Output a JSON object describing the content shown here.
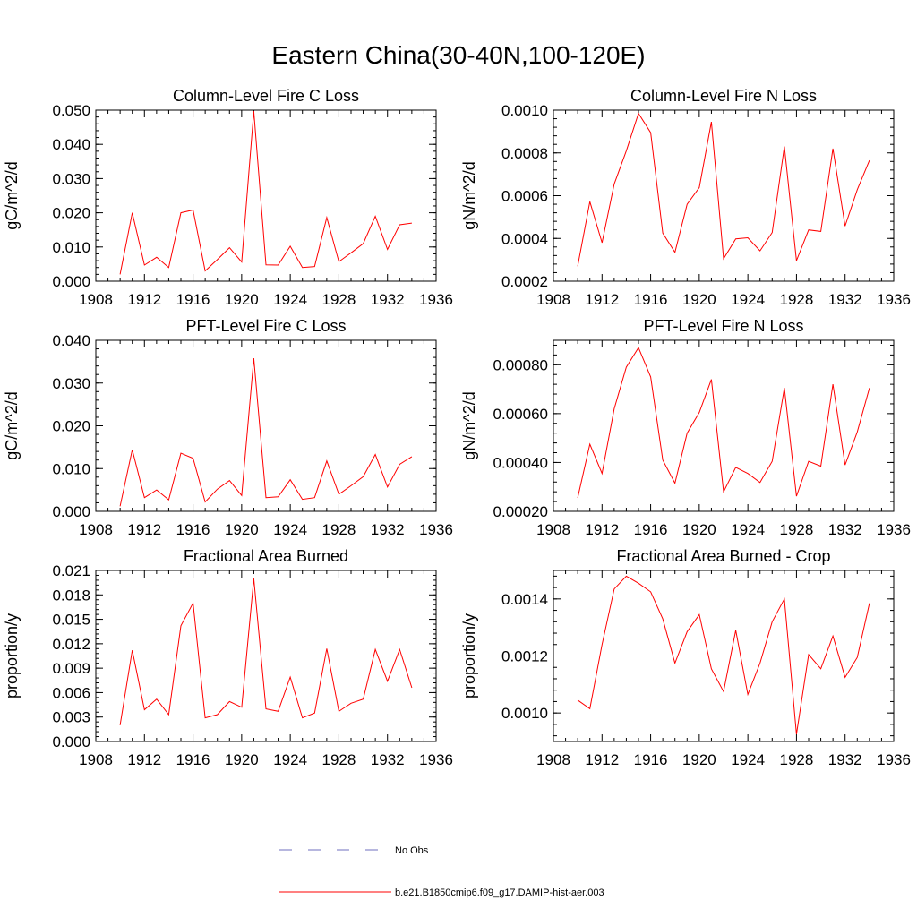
{
  "title": "Eastern China(30-40N,100-120E)",
  "legend": {
    "items": [
      {
        "label": "No Obs",
        "color": "#6f6fbf",
        "style": "dashed"
      },
      {
        "label": "b.e21.B1850cmip6.f09_g17.DAMIP-hist-aer.003",
        "color": "#ff0000",
        "style": "solid"
      }
    ]
  },
  "chart_data": [
    {
      "type": "line",
      "title": "Column-Level Fire C Loss",
      "ylabel": "gC/m^2/d",
      "xlim": [
        1908,
        1936
      ],
      "ylim": [
        0,
        0.05
      ],
      "xticks": [
        1908,
        1912,
        1916,
        1920,
        1924,
        1928,
        1932,
        1936
      ],
      "xtick_labels": [
        "1908",
        "1912",
        "1916",
        "1920",
        "1924",
        "1928",
        "1932",
        "1936"
      ],
      "yticks": [
        0,
        0.01,
        0.02,
        0.03,
        0.04,
        0.05
      ],
      "ytick_labels": [
        "0.000",
        "0.010",
        "0.020",
        "0.030",
        "0.040",
        "0.050"
      ],
      "series": [
        {
          "name": "b.e21.B1850cmip6.f09_g17.DAMIP-hist-aer.003",
          "color": "#ff0000",
          "x": [
            1910,
            1911,
            1912,
            1913,
            1914,
            1915,
            1916,
            1917,
            1918,
            1919,
            1920,
            1921,
            1922,
            1923,
            1924,
            1925,
            1926,
            1927,
            1928,
            1929,
            1930,
            1931,
            1932,
            1933,
            1934
          ],
          "y": [
            0.002,
            0.02,
            0.0047,
            0.007,
            0.004,
            0.02,
            0.0208,
            0.003,
            0.0063,
            0.0098,
            0.0056,
            0.0497,
            0.0048,
            0.0047,
            0.0102,
            0.004,
            0.0043,
            0.0186,
            0.0057,
            0.0083,
            0.011,
            0.019,
            0.0093,
            0.0165,
            0.017
          ]
        }
      ]
    },
    {
      "type": "line",
      "title": "Column-Level Fire N Loss",
      "ylabel": "gN/m^2/d",
      "xlim": [
        1908,
        1936
      ],
      "ylim": [
        0.0002,
        0.001
      ],
      "xticks": [
        1908,
        1912,
        1916,
        1920,
        1924,
        1928,
        1932,
        1936
      ],
      "xtick_labels": [
        "1908",
        "1912",
        "1916",
        "1920",
        "1924",
        "1928",
        "1932",
        "1936"
      ],
      "yticks": [
        0.0002,
        0.0004,
        0.0006,
        0.0008,
        0.001
      ],
      "ytick_labels": [
        "0.0002",
        "0.0004",
        "0.0006",
        "0.0008",
        "0.0010"
      ],
      "series": [
        {
          "name": "b.e21.B1850cmip6.f09_g17.DAMIP-hist-aer.003",
          "color": "#ff0000",
          "x": [
            1910,
            1911,
            1912,
            1913,
            1914,
            1915,
            1916,
            1917,
            1918,
            1919,
            1920,
            1921,
            1922,
            1923,
            1924,
            1925,
            1926,
            1927,
            1928,
            1929,
            1930,
            1931,
            1932,
            1933,
            1934
          ],
          "y": [
            0.00027,
            0.000572,
            0.00038,
            0.000655,
            0.00081,
            0.000985,
            0.000895,
            0.000425,
            0.000335,
            0.00056,
            0.000638,
            0.000945,
            0.000305,
            0.000398,
            0.000403,
            0.000342,
            0.000428,
            0.00083,
            0.000296,
            0.00044,
            0.000433,
            0.00082,
            0.000458,
            0.000628,
            0.000765
          ]
        }
      ]
    },
    {
      "type": "line",
      "title": "PFT-Level Fire C Loss",
      "ylabel": "gC/m^2/d",
      "xlim": [
        1908,
        1936
      ],
      "ylim": [
        0,
        0.04
      ],
      "xticks": [
        1908,
        1912,
        1916,
        1920,
        1924,
        1928,
        1932,
        1936
      ],
      "xtick_labels": [
        "1908",
        "1912",
        "1916",
        "1920",
        "1924",
        "1928",
        "1932",
        "1936"
      ],
      "yticks": [
        0,
        0.01,
        0.02,
        0.03,
        0.04
      ],
      "ytick_labels": [
        "0.000",
        "0.010",
        "0.020",
        "0.030",
        "0.040"
      ],
      "series": [
        {
          "name": "b.e21.B1850cmip6.f09_g17.DAMIP-hist-aer.003",
          "color": "#ff0000",
          "x": [
            1910,
            1911,
            1912,
            1913,
            1914,
            1915,
            1916,
            1917,
            1918,
            1919,
            1920,
            1921,
            1922,
            1923,
            1924,
            1925,
            1926,
            1927,
            1928,
            1929,
            1930,
            1931,
            1932,
            1933,
            1934
          ],
          "y": [
            0.0012,
            0.0144,
            0.0032,
            0.005,
            0.0027,
            0.0136,
            0.0124,
            0.0022,
            0.0052,
            0.0072,
            0.0037,
            0.0358,
            0.0032,
            0.0034,
            0.0074,
            0.0028,
            0.0032,
            0.0118,
            0.004,
            0.006,
            0.0081,
            0.0133,
            0.0057,
            0.011,
            0.0128
          ]
        }
      ]
    },
    {
      "type": "line",
      "title": "PFT-Level Fire N Loss",
      "ylabel": "gN/m^2/d",
      "xlim": [
        1908,
        1936
      ],
      "ylim": [
        0.0002,
        0.0009
      ],
      "xticks": [
        1908,
        1912,
        1916,
        1920,
        1924,
        1928,
        1932,
        1936
      ],
      "xtick_labels": [
        "1908",
        "1912",
        "1916",
        "1920",
        "1924",
        "1928",
        "1932",
        "1936"
      ],
      "yticks": [
        0.0002,
        0.0004,
        0.0006,
        0.0008
      ],
      "ytick_labels": [
        "0.00020",
        "0.00040",
        "0.00060",
        "0.00080"
      ],
      "series": [
        {
          "name": "b.e21.B1850cmip6.f09_g17.DAMIP-hist-aer.003",
          "color": "#ff0000",
          "x": [
            1910,
            1911,
            1912,
            1913,
            1914,
            1915,
            1916,
            1917,
            1918,
            1919,
            1920,
            1921,
            1922,
            1923,
            1924,
            1925,
            1926,
            1927,
            1928,
            1929,
            1930,
            1931,
            1932,
            1933,
            1934
          ],
          "y": [
            0.000255,
            0.000475,
            0.000355,
            0.00062,
            0.00079,
            0.00087,
            0.00075,
            0.00041,
            0.000315,
            0.00052,
            0.000605,
            0.00074,
            0.00028,
            0.00038,
            0.000355,
            0.000318,
            0.000405,
            0.000705,
            0.000262,
            0.000405,
            0.000385,
            0.00072,
            0.00039,
            0.000525,
            0.000705
          ]
        }
      ]
    },
    {
      "type": "line",
      "title": "Fractional Area Burned",
      "ylabel": "proportion/y",
      "xlim": [
        1908,
        1936
      ],
      "ylim": [
        0,
        0.021
      ],
      "xticks": [
        1908,
        1912,
        1916,
        1920,
        1924,
        1928,
        1932,
        1936
      ],
      "xtick_labels": [
        "1908",
        "1912",
        "1916",
        "1920",
        "1924",
        "1928",
        "1932",
        "1936"
      ],
      "yticks": [
        0,
        0.003,
        0.006,
        0.009,
        0.012,
        0.015,
        0.018,
        0.021
      ],
      "ytick_labels": [
        "0.000",
        "0.003",
        "0.006",
        "0.009",
        "0.012",
        "0.015",
        "0.018",
        "0.021"
      ],
      "series": [
        {
          "name": "b.e21.B1850cmip6.f09_g17.DAMIP-hist-aer.003",
          "color": "#ff0000",
          "x": [
            1910,
            1911,
            1912,
            1913,
            1914,
            1915,
            1916,
            1917,
            1918,
            1919,
            1920,
            1921,
            1922,
            1923,
            1924,
            1925,
            1926,
            1927,
            1928,
            1929,
            1930,
            1931,
            1932,
            1933,
            1934
          ],
          "y": [
            0.002,
            0.0112,
            0.0039,
            0.0052,
            0.0033,
            0.0142,
            0.017,
            0.0029,
            0.0033,
            0.0049,
            0.0042,
            0.02,
            0.004,
            0.0037,
            0.0079,
            0.0029,
            0.0035,
            0.0114,
            0.0037,
            0.0047,
            0.0052,
            0.0113,
            0.0074,
            0.0113,
            0.0066
          ]
        }
      ]
    },
    {
      "type": "line",
      "title": "Fractional Area Burned - Crop",
      "ylabel": "proportion/y",
      "xlim": [
        1908,
        1936
      ],
      "ylim": [
        0.0009,
        0.0015
      ],
      "xticks": [
        1908,
        1912,
        1916,
        1920,
        1924,
        1928,
        1932,
        1936
      ],
      "xtick_labels": [
        "1908",
        "1912",
        "1916",
        "1920",
        "1924",
        "1928",
        "1932",
        "1936"
      ],
      "yticks": [
        0.001,
        0.0012,
        0.0014
      ],
      "ytick_labels": [
        "0.0010",
        "0.0012",
        "0.0014"
      ],
      "series": [
        {
          "name": "b.e21.B1850cmip6.f09_g17.DAMIP-hist-aer.003",
          "color": "#ff0000",
          "x": [
            1910,
            1911,
            1912,
            1913,
            1914,
            1915,
            1916,
            1917,
            1918,
            1919,
            1920,
            1921,
            1922,
            1923,
            1924,
            1925,
            1926,
            1927,
            1928,
            1929,
            1930,
            1931,
            1932,
            1933,
            1934
          ],
          "y": [
            0.001045,
            0.001015,
            0.00124,
            0.001435,
            0.00148,
            0.001455,
            0.001425,
            0.00133,
            0.001175,
            0.001285,
            0.001345,
            0.001155,
            0.001075,
            0.00129,
            0.001065,
            0.001175,
            0.00132,
            0.0014,
            0.000925,
            0.001205,
            0.001155,
            0.00127,
            0.001125,
            0.001195,
            0.001385
          ]
        }
      ]
    }
  ]
}
